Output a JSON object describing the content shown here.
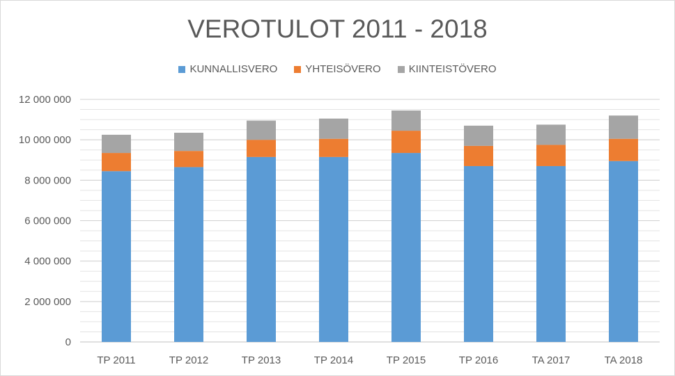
{
  "chart_data": {
    "type": "bar",
    "stacked": true,
    "title": "VEROTULOT 2011 - 2018",
    "categories": [
      "TP 2011",
      "TP 2012",
      "TP 2013",
      "TP 2014",
      "TP 2015",
      "TP 2016",
      "TA 2017",
      "TA 2018"
    ],
    "series": [
      {
        "name": "KUNNALLISVERO",
        "color": "#5b9bd5",
        "values": [
          8450000,
          8650000,
          9150000,
          9150000,
          9350000,
          8700000,
          8700000,
          8950000
        ]
      },
      {
        "name": "YHTEISÖVERO",
        "color": "#ed7d31",
        "values": [
          900000,
          800000,
          850000,
          900000,
          1100000,
          1000000,
          1050000,
          1100000
        ]
      },
      {
        "name": "KIINTEISTÖVERO",
        "color": "#a5a5a5",
        "values": [
          900000,
          900000,
          950000,
          1000000,
          1000000,
          1000000,
          1000000,
          1150000
        ]
      }
    ],
    "ylim": [
      0,
      12000000
    ],
    "yticks": [
      0,
      2000000,
      4000000,
      6000000,
      8000000,
      10000000,
      12000000
    ],
    "ytick_labels": [
      "0",
      "2 000 000",
      "4 000 000",
      "6 000 000",
      "8 000 000",
      "10 000 000",
      "12 000 000"
    ],
    "grid": true,
    "legend_position": "top",
    "xlabel": "",
    "ylabel": ""
  }
}
